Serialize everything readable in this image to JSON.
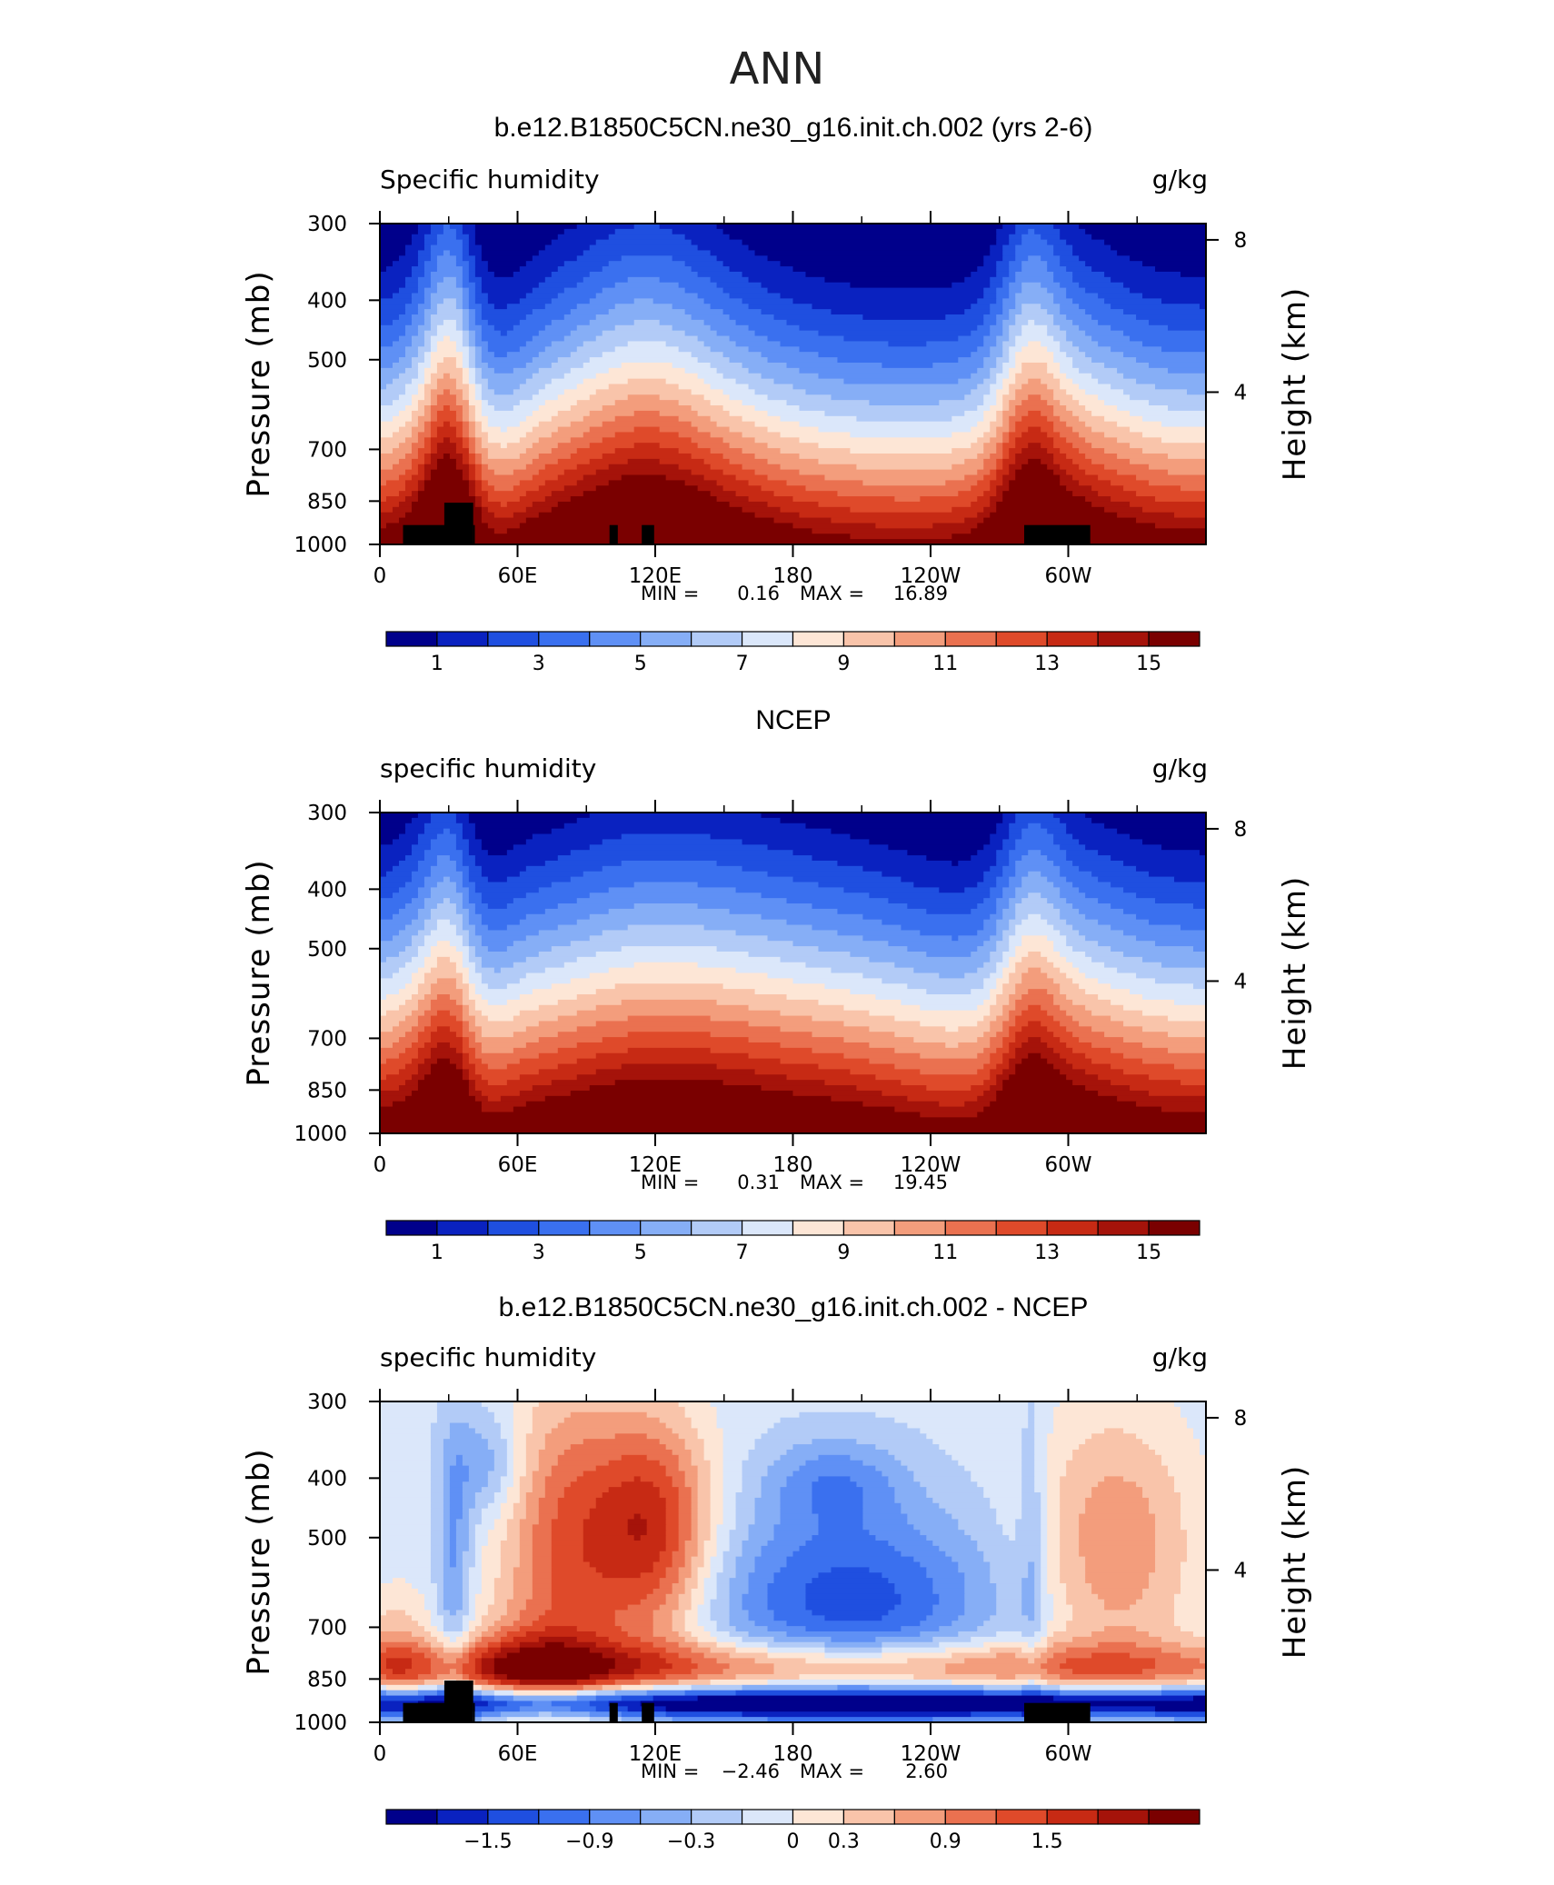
{
  "figure_title": "ANN",
  "palette": [
    "#00008b",
    "#0a22c0",
    "#1f4fe0",
    "#3a70ef",
    "#5f90f5",
    "#86aef6",
    "#b2cbf7",
    "#dbe7fa",
    "#fde6d6",
    "#f9c4aa",
    "#f39d7c",
    "#ea7150",
    "#df4a2a",
    "#c72a14",
    "#a5130a",
    "#7a0000"
  ],
  "chart_data": [
    {
      "type": "heatmap",
      "title": "b.e12.B1850C5CN.ne30_g16.init.ch.002 (yrs 2-6)",
      "left_label": "Specific humidity",
      "right_label": "g/kg",
      "xlabel": "",
      "ylabel": "Pressure (mb)",
      "y2label": "Height (km)",
      "x_ticks": [
        "0",
        "60E",
        "120E",
        "180",
        "120W",
        "60W"
      ],
      "y_ticks": [
        "300",
        "400",
        "500",
        "700",
        "850",
        "1000"
      ],
      "y2_ticks": [
        "8",
        "4"
      ],
      "min_label": "MIN =",
      "min_value": "0.16",
      "max_label": "MAX =",
      "max_value": "16.89",
      "colorbar_labels": [
        "1",
        "3",
        "5",
        "7",
        "9",
        "11",
        "13",
        "15"
      ],
      "topography": true
    },
    {
      "type": "heatmap",
      "title": "NCEP",
      "left_label": "specific humidity",
      "right_label": "g/kg",
      "xlabel": "",
      "ylabel": "Pressure (mb)",
      "y2label": "Height (km)",
      "x_ticks": [
        "0",
        "60E",
        "120E",
        "180",
        "120W",
        "60W"
      ],
      "y_ticks": [
        "300",
        "400",
        "500",
        "700",
        "850",
        "1000"
      ],
      "y2_ticks": [
        "8",
        "4"
      ],
      "min_label": "MIN =",
      "min_value": "0.31",
      "max_label": "MAX =",
      "max_value": "19.45",
      "colorbar_labels": [
        "1",
        "3",
        "5",
        "7",
        "9",
        "11",
        "13",
        "15"
      ],
      "topography": false
    },
    {
      "type": "heatmap",
      "title": "b.e12.B1850C5CN.ne30_g16.init.ch.002 - NCEP",
      "left_label": "specific humidity",
      "right_label": "g/kg",
      "xlabel": "",
      "ylabel": "Pressure (mb)",
      "y2label": "Height (km)",
      "x_ticks": [
        "0",
        "60E",
        "120E",
        "180",
        "120W",
        "60W"
      ],
      "y_ticks": [
        "300",
        "400",
        "500",
        "700",
        "850",
        "1000"
      ],
      "y2_ticks": [
        "8",
        "4"
      ],
      "min_label": "MIN =",
      "min_value": "−2.46",
      "max_label": "MAX =",
      "max_value": "2.60",
      "colorbar_labels": [
        "−1.5",
        "−0.9",
        "−0.3",
        "0",
        "0.3",
        "0.9",
        "1.5"
      ],
      "topography": true
    }
  ]
}
